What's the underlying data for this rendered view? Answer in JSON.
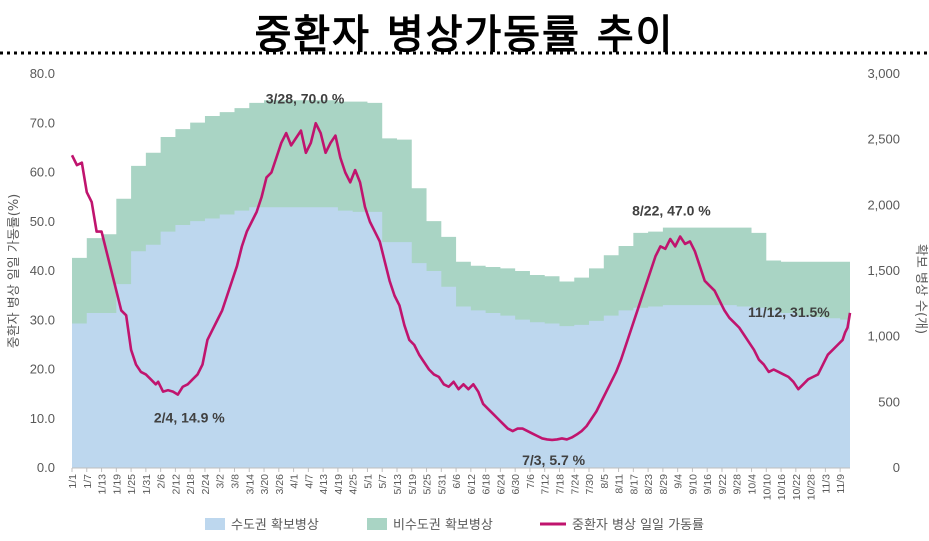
{
  "chart_data": {
    "type": "area+line",
    "title": "중환자 병상가동률 추이",
    "ylabel_left": "중환자 병상 일일 가동률(%)",
    "ylabel_right": "확보 병상 수(개)",
    "ylim_left": [
      0,
      80
    ],
    "ylim_right": [
      0,
      3000
    ],
    "yticks_left": [
      "0.0",
      "10.0",
      "20.0",
      "30.0",
      "40.0",
      "50.0",
      "60.0",
      "70.0",
      "80.0"
    ],
    "yticks_right": [
      "0",
      "500",
      "1,000",
      "1,500",
      "2,000",
      "2,500",
      "3,000"
    ],
    "x_labels": [
      "1/1",
      "1/7",
      "1/13",
      "1/19",
      "1/25",
      "1/31",
      "2/6",
      "2/12",
      "2/18",
      "2/24",
      "3/2",
      "3/8",
      "3/14",
      "3/20",
      "3/26",
      "4/1",
      "4/7",
      "4/13",
      "4/19",
      "4/25",
      "5/1",
      "5/7",
      "5/13",
      "5/19",
      "5/25",
      "5/31",
      "6/6",
      "6/12",
      "6/18",
      "6/24",
      "6/30",
      "7/6",
      "7/12",
      "7/18",
      "7/24",
      "7/30",
      "8/5",
      "8/11",
      "8/17",
      "8/23",
      "8/29",
      "9/4",
      "9/10",
      "9/16",
      "9/22",
      "9/28",
      "10/4",
      "10/10",
      "10/16",
      "10/22",
      "10/28",
      "11/3",
      "11/9"
    ],
    "series": [
      {
        "name": "수도권 확보병상",
        "axis": "right",
        "color": "#bdd7ee",
        "points": [
          [
            1,
            1100
          ],
          [
            7,
            1180
          ],
          [
            13,
            1180
          ],
          [
            19,
            1400
          ],
          [
            25,
            1650
          ],
          [
            31,
            1700
          ],
          [
            37,
            1800
          ],
          [
            43,
            1850
          ],
          [
            49,
            1880
          ],
          [
            55,
            1900
          ],
          [
            61,
            1930
          ],
          [
            67,
            1960
          ],
          [
            73,
            1985
          ],
          [
            79,
            1985
          ],
          [
            85,
            1985
          ],
          [
            91,
            1985
          ],
          [
            97,
            1985
          ],
          [
            103,
            1985
          ],
          [
            109,
            1960
          ],
          [
            115,
            1950
          ],
          [
            121,
            1950
          ],
          [
            127,
            1720
          ],
          [
            133,
            1720
          ],
          [
            139,
            1560
          ],
          [
            145,
            1500
          ],
          [
            151,
            1380
          ],
          [
            157,
            1230
          ],
          [
            163,
            1200
          ],
          [
            169,
            1180
          ],
          [
            175,
            1160
          ],
          [
            181,
            1130
          ],
          [
            187,
            1110
          ],
          [
            193,
            1100
          ],
          [
            199,
            1080
          ],
          [
            205,
            1090
          ],
          [
            211,
            1120
          ],
          [
            217,
            1160
          ],
          [
            223,
            1200
          ],
          [
            229,
            1220
          ],
          [
            235,
            1230
          ],
          [
            241,
            1240
          ],
          [
            247,
            1240
          ],
          [
            253,
            1240
          ],
          [
            259,
            1240
          ],
          [
            265,
            1240
          ],
          [
            271,
            1230
          ],
          [
            277,
            1220
          ],
          [
            283,
            1200
          ],
          [
            289,
            1180
          ],
          [
            295,
            1160
          ],
          [
            301,
            1150
          ],
          [
            307,
            1140
          ],
          [
            313,
            1130
          ],
          [
            317,
            1130
          ]
        ]
      },
      {
        "name": "비수도권 확보병상",
        "axis": "right",
        "color": "#a9d4c4",
        "points": [
          [
            1,
            1600
          ],
          [
            7,
            1750
          ],
          [
            13,
            1780
          ],
          [
            19,
            2050
          ],
          [
            25,
            2300
          ],
          [
            31,
            2400
          ],
          [
            37,
            2520
          ],
          [
            43,
            2580
          ],
          [
            49,
            2630
          ],
          [
            55,
            2680
          ],
          [
            61,
            2710
          ],
          [
            67,
            2740
          ],
          [
            73,
            2780
          ],
          [
            79,
            2800
          ],
          [
            85,
            2800
          ],
          [
            91,
            2800
          ],
          [
            97,
            2800
          ],
          [
            103,
            2800
          ],
          [
            109,
            2790
          ],
          [
            115,
            2790
          ],
          [
            121,
            2780
          ],
          [
            127,
            2510
          ],
          [
            133,
            2500
          ],
          [
            139,
            2130
          ],
          [
            145,
            1880
          ],
          [
            151,
            1760
          ],
          [
            157,
            1570
          ],
          [
            163,
            1540
          ],
          [
            169,
            1530
          ],
          [
            175,
            1520
          ],
          [
            181,
            1500
          ],
          [
            187,
            1470
          ],
          [
            193,
            1460
          ],
          [
            199,
            1420
          ],
          [
            205,
            1450
          ],
          [
            211,
            1520
          ],
          [
            217,
            1620
          ],
          [
            223,
            1690
          ],
          [
            229,
            1790
          ],
          [
            235,
            1800
          ],
          [
            241,
            1830
          ],
          [
            247,
            1830
          ],
          [
            253,
            1830
          ],
          [
            259,
            1830
          ],
          [
            265,
            1830
          ],
          [
            271,
            1830
          ],
          [
            277,
            1790
          ],
          [
            283,
            1580
          ],
          [
            289,
            1570
          ],
          [
            295,
            1570
          ],
          [
            301,
            1570
          ],
          [
            307,
            1570
          ],
          [
            313,
            1570
          ],
          [
            317,
            1570
          ]
        ]
      },
      {
        "name": "중환자 병상 일일 가동률",
        "axis": "left",
        "color": "#c0146e",
        "points": [
          [
            1,
            63.5
          ],
          [
            3,
            61.5
          ],
          [
            5,
            62.0
          ],
          [
            7,
            56.0
          ],
          [
            9,
            54.0
          ],
          [
            11,
            48.0
          ],
          [
            13,
            48.0
          ],
          [
            15,
            44.0
          ],
          [
            17,
            40.0
          ],
          [
            19,
            36.0
          ],
          [
            21,
            32.0
          ],
          [
            23,
            31.0
          ],
          [
            25,
            24.0
          ],
          [
            27,
            21.0
          ],
          [
            29,
            19.5
          ],
          [
            31,
            19.0
          ],
          [
            33,
            18.0
          ],
          [
            35,
            17.0
          ],
          [
            36,
            17.5
          ],
          [
            38,
            15.5
          ],
          [
            40,
            15.8
          ],
          [
            42,
            15.5
          ],
          [
            44,
            14.9
          ],
          [
            46,
            16.5
          ],
          [
            48,
            17.0
          ],
          [
            50,
            18.0
          ],
          [
            52,
            19.0
          ],
          [
            54,
            21.0
          ],
          [
            56,
            26.0
          ],
          [
            58,
            28.0
          ],
          [
            60,
            30.0
          ],
          [
            62,
            32.0
          ],
          [
            64,
            35.0
          ],
          [
            66,
            38.0
          ],
          [
            68,
            41.0
          ],
          [
            70,
            45.0
          ],
          [
            72,
            48.0
          ],
          [
            74,
            50.0
          ],
          [
            76,
            52.0
          ],
          [
            78,
            55.0
          ],
          [
            80,
            59.0
          ],
          [
            82,
            60.0
          ],
          [
            84,
            63.0
          ],
          [
            86,
            66.0
          ],
          [
            88,
            68.0
          ],
          [
            90,
            65.5
          ],
          [
            92,
            67.0
          ],
          [
            94,
            68.5
          ],
          [
            96,
            64.0
          ],
          [
            98,
            66.0
          ],
          [
            100,
            70.0
          ],
          [
            102,
            68.0
          ],
          [
            104,
            64.0
          ],
          [
            106,
            66.0
          ],
          [
            108,
            67.5
          ],
          [
            110,
            63.0
          ],
          [
            112,
            60.0
          ],
          [
            114,
            58.0
          ],
          [
            116,
            60.5
          ],
          [
            118,
            58.0
          ],
          [
            120,
            53.0
          ],
          [
            122,
            50.0
          ],
          [
            124,
            48.0
          ],
          [
            126,
            46.0
          ],
          [
            128,
            42.0
          ],
          [
            130,
            38.0
          ],
          [
            132,
            35.0
          ],
          [
            134,
            33.0
          ],
          [
            136,
            29.0
          ],
          [
            138,
            26.0
          ],
          [
            140,
            25.0
          ],
          [
            142,
            23.0
          ],
          [
            144,
            21.5
          ],
          [
            146,
            20.0
          ],
          [
            148,
            19.0
          ],
          [
            150,
            18.5
          ],
          [
            152,
            17.0
          ],
          [
            154,
            16.5
          ],
          [
            156,
            17.5
          ],
          [
            158,
            16.0
          ],
          [
            160,
            17.0
          ],
          [
            162,
            16.0
          ],
          [
            164,
            17.0
          ],
          [
            166,
            15.5
          ],
          [
            168,
            13.0
          ],
          [
            170,
            12.0
          ],
          [
            172,
            11.0
          ],
          [
            174,
            10.0
          ],
          [
            176,
            9.0
          ],
          [
            178,
            8.0
          ],
          [
            180,
            7.5
          ],
          [
            182,
            8.0
          ],
          [
            184,
            8.0
          ],
          [
            186,
            7.5
          ],
          [
            188,
            7.0
          ],
          [
            190,
            6.5
          ],
          [
            192,
            6.0
          ],
          [
            194,
            5.8
          ],
          [
            196,
            5.7
          ],
          [
            198,
            5.8
          ],
          [
            200,
            6.0
          ],
          [
            202,
            5.8
          ],
          [
            204,
            6.2
          ],
          [
            206,
            6.8
          ],
          [
            208,
            7.5
          ],
          [
            210,
            8.5
          ],
          [
            212,
            10.0
          ],
          [
            214,
            11.5
          ],
          [
            216,
            13.5
          ],
          [
            218,
            15.5
          ],
          [
            220,
            17.5
          ],
          [
            222,
            19.5
          ],
          [
            224,
            22.0
          ],
          [
            226,
            25.0
          ],
          [
            228,
            28.0
          ],
          [
            230,
            31.0
          ],
          [
            232,
            34.0
          ],
          [
            234,
            37.0
          ],
          [
            236,
            40.0
          ],
          [
            238,
            43.0
          ],
          [
            240,
            45.0
          ],
          [
            242,
            44.5
          ],
          [
            244,
            46.5
          ],
          [
            246,
            45.0
          ],
          [
            248,
            47.0
          ],
          [
            250,
            45.5
          ],
          [
            252,
            46.0
          ],
          [
            254,
            44.0
          ],
          [
            256,
            41.0
          ],
          [
            258,
            38.0
          ],
          [
            260,
            37.0
          ],
          [
            262,
            36.0
          ],
          [
            264,
            34.0
          ],
          [
            266,
            32.0
          ],
          [
            268,
            30.5
          ],
          [
            270,
            29.5
          ],
          [
            272,
            28.5
          ],
          [
            274,
            27.0
          ],
          [
            276,
            25.5
          ],
          [
            278,
            24.0
          ],
          [
            280,
            22.0
          ],
          [
            282,
            21.0
          ],
          [
            284,
            19.5
          ],
          [
            286,
            20.0
          ],
          [
            288,
            19.5
          ],
          [
            290,
            19.0
          ],
          [
            292,
            18.5
          ],
          [
            294,
            17.5
          ],
          [
            296,
            16.0
          ],
          [
            298,
            17.0
          ],
          [
            300,
            18.0
          ],
          [
            302,
            18.5
          ],
          [
            304,
            19.0
          ],
          [
            306,
            21.0
          ],
          [
            308,
            23.0
          ],
          [
            310,
            24.0
          ],
          [
            312,
            25.0
          ],
          [
            314,
            26.0
          ],
          [
            315,
            27.5
          ],
          [
            316,
            28.5
          ],
          [
            317,
            31.5
          ]
        ]
      }
    ],
    "annotations": [
      {
        "text": "2/4, 14.9 %",
        "day": 44,
        "value": 14.9
      },
      {
        "text": "3/28, 70.0 %",
        "day": 100,
        "value": 70.0
      },
      {
        "text": "7/3, 5.7 %",
        "day": 196,
        "value": 5.7
      },
      {
        "text": "8/22, 47.0 %",
        "day": 248,
        "value": 47.0
      },
      {
        "text": "11/12, 31.5%",
        "day": 317,
        "value": 31.5
      }
    ],
    "legend": [
      {
        "name": "수도권 확보병상",
        "color": "#bdd7ee",
        "kind": "box"
      },
      {
        "name": "비수도권 확보병상",
        "color": "#a9d4c4",
        "kind": "box"
      },
      {
        "name": "중환자 병상 일일 가동률",
        "color": "#c0146e",
        "kind": "line"
      }
    ],
    "legend_position": "bottom"
  }
}
